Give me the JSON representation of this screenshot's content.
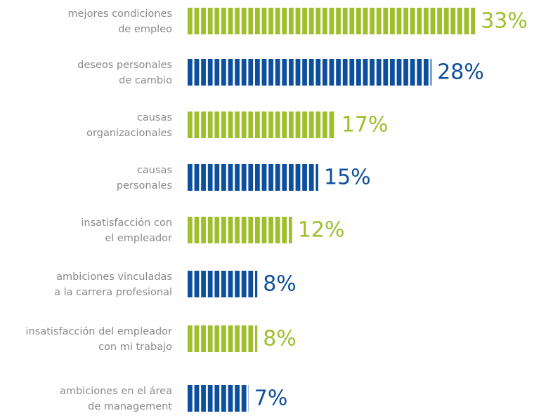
{
  "chart_data": {
    "type": "bar",
    "orientation": "horizontal",
    "categories": [
      [
        "mejores condiciones",
        "de empleo"
      ],
      [
        "deseos personales",
        "de cambio"
      ],
      [
        "causas",
        "organizacionales"
      ],
      [
        "causas",
        "personales"
      ],
      [
        "insatisfacción con",
        "el empleador"
      ],
      [
        "ambiciones vinculadas",
        "a la carrera profesional"
      ],
      [
        "insatisfacción del empleador",
        "con mi trabajo"
      ],
      [
        "ambiciones  en el área",
        "de management"
      ]
    ],
    "values": [
      33,
      28,
      17,
      15,
      12,
      8,
      8,
      7
    ],
    "value_labels": [
      "33%",
      "28%",
      "17%",
      "15%",
      "12%",
      "8%",
      "8%",
      "7%"
    ],
    "colors": [
      "#9dbf2c",
      "#0d4f9d",
      "#9dbf2c",
      "#0d4f9d",
      "#9dbf2c",
      "#0d4f9d",
      "#9dbf2c",
      "#0d4f9d"
    ]
  }
}
